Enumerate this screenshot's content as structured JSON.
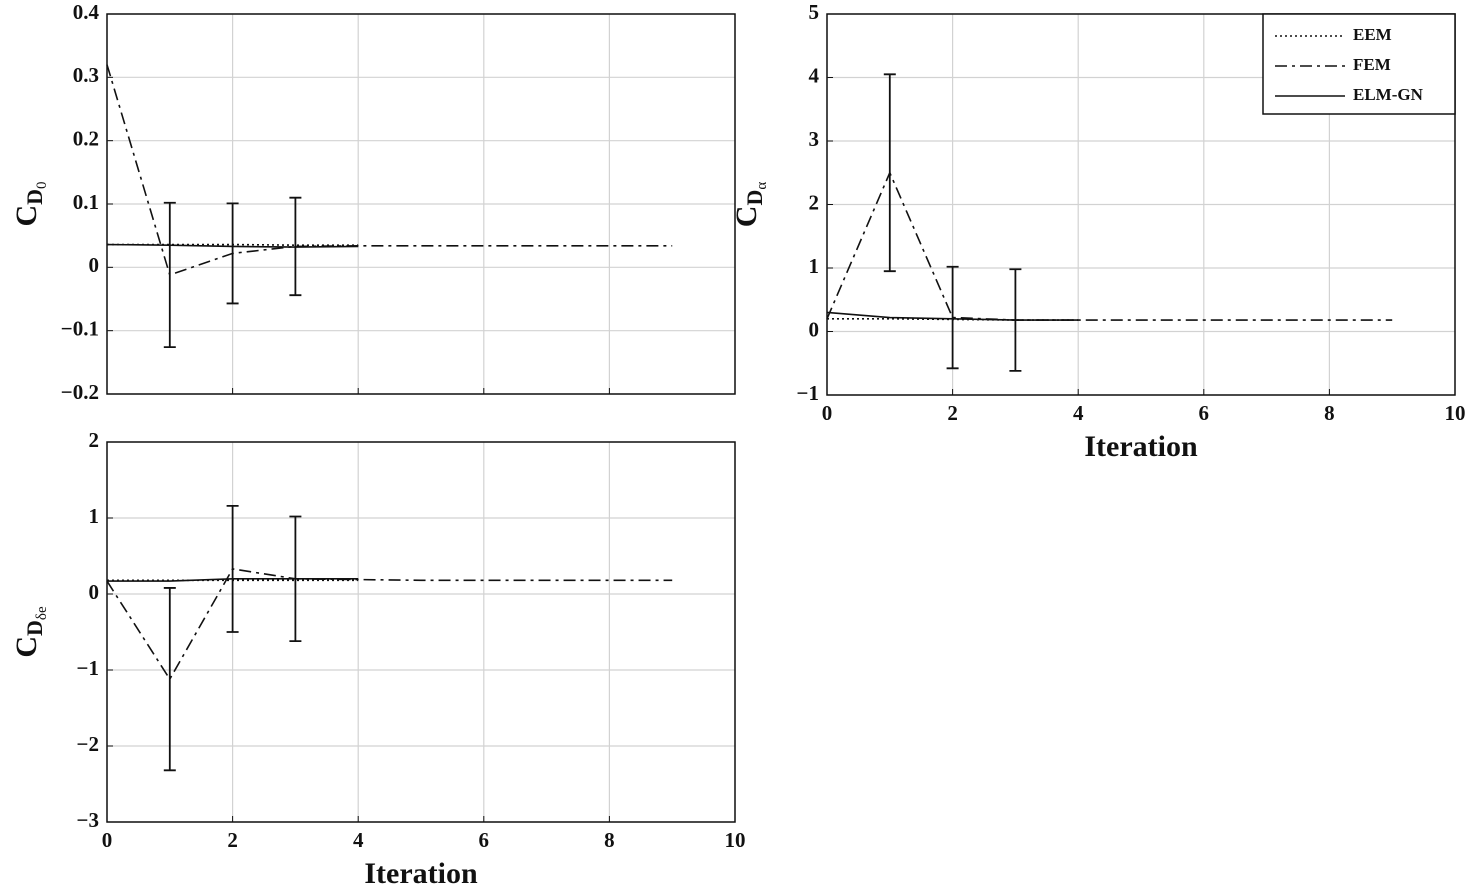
{
  "chart_data": [
    {
      "type": "line",
      "ylabel": [
        "C",
        "D",
        "0"
      ],
      "x": [
        0,
        1,
        2,
        3,
        4,
        5,
        6,
        7,
        8,
        9
      ],
      "xlim": [
        0,
        10
      ],
      "xticks": [
        0,
        2,
        4,
        6,
        8,
        10
      ],
      "xticklabels": false,
      "ylim": [
        -0.2,
        0.4
      ],
      "yticks": [
        {
          "value": -0.2,
          "label": "−0.2"
        },
        {
          "value": -0.1,
          "label": "−0.1"
        },
        0,
        0.1,
        0.2,
        0.3,
        0.4
      ],
      "grid": true,
      "series": [
        {
          "color": "#111111",
          "style": "dotted",
          "values": [
            0.036,
            0.036,
            0.036,
            0.035,
            0.035,
            null,
            null,
            null,
            null,
            null
          ]
        },
        {
          "color": "#111111",
          "style": "dashdot",
          "values": [
            0.32,
            -0.012,
            0.022,
            0.033,
            0.034,
            0.034,
            0.034,
            0.034,
            0.034,
            0.034
          ],
          "errors": [
            null,
            0.114,
            0.079,
            0.077,
            null,
            null,
            null,
            null,
            null,
            null
          ]
        },
        {
          "color": "#111111",
          "style": "solid",
          "values": [
            0.036,
            0.035,
            0.033,
            0.032,
            0.033,
            null,
            null,
            null,
            null,
            null
          ]
        }
      ]
    },
    {
      "type": "line",
      "ylabel": [
        "C",
        "D",
        "α"
      ],
      "xlabel": "Iteration",
      "x": [
        0,
        1,
        2,
        3,
        4,
        5,
        6,
        7,
        8,
        9
      ],
      "xlim": [
        0,
        10
      ],
      "xticks": [
        0,
        2,
        4,
        6,
        8,
        10
      ],
      "ylim": [
        -1,
        5
      ],
      "yticks": [
        {
          "value": -1,
          "label": "−1"
        },
        0,
        1,
        2,
        3,
        4,
        5
      ],
      "grid": true,
      "legend": "upper right",
      "series": [
        {
          "name": "EEM",
          "color": "#111111",
          "style": "dotted",
          "values": [
            0.2,
            0.2,
            0.19,
            0.18,
            0.18,
            null,
            null,
            null,
            null,
            null
          ]
        },
        {
          "name": "FEM",
          "color": "#111111",
          "style": "dashdot",
          "values": [
            0.2,
            2.5,
            0.22,
            0.18,
            0.18,
            0.18,
            0.18,
            0.18,
            0.18,
            0.18
          ],
          "errors": [
            null,
            1.55,
            0.8,
            0.8,
            null,
            null,
            null,
            null,
            null,
            null
          ]
        },
        {
          "name": "ELM-GN",
          "color": "#111111",
          "style": "solid",
          "values": [
            0.3,
            0.22,
            0.2,
            0.18,
            0.18,
            null,
            null,
            null,
            null,
            null
          ]
        }
      ]
    },
    {
      "type": "line",
      "ylabel": [
        "C",
        "D",
        "δe"
      ],
      "xlabel": "Iteration",
      "x": [
        0,
        1,
        2,
        3,
        4,
        5,
        6,
        7,
        8,
        9
      ],
      "xlim": [
        0,
        10
      ],
      "xticks": [
        0,
        2,
        4,
        6,
        8,
        10
      ],
      "ylim": [
        -3,
        2
      ],
      "yticks": [
        {
          "value": -3,
          "label": "−3"
        },
        {
          "value": -2,
          "label": "−2"
        },
        {
          "value": -1,
          "label": "−1"
        },
        0,
        1,
        2
      ],
      "grid": true,
      "series": [
        {
          "color": "#111111",
          "style": "dotted",
          "values": [
            0.18,
            0.18,
            0.18,
            0.18,
            0.18,
            null,
            null,
            null,
            null,
            null
          ]
        },
        {
          "color": "#111111",
          "style": "dashdot",
          "values": [
            0.17,
            -1.12,
            0.33,
            0.2,
            0.19,
            0.18,
            0.18,
            0.18,
            0.18,
            0.18
          ],
          "errors": [
            null,
            1.2,
            0.83,
            0.82,
            null,
            null,
            null,
            null,
            null,
            null
          ]
        },
        {
          "color": "#111111",
          "style": "solid",
          "values": [
            0.17,
            0.17,
            0.2,
            0.2,
            0.2,
            null,
            null,
            null,
            null,
            null
          ]
        }
      ]
    }
  ]
}
